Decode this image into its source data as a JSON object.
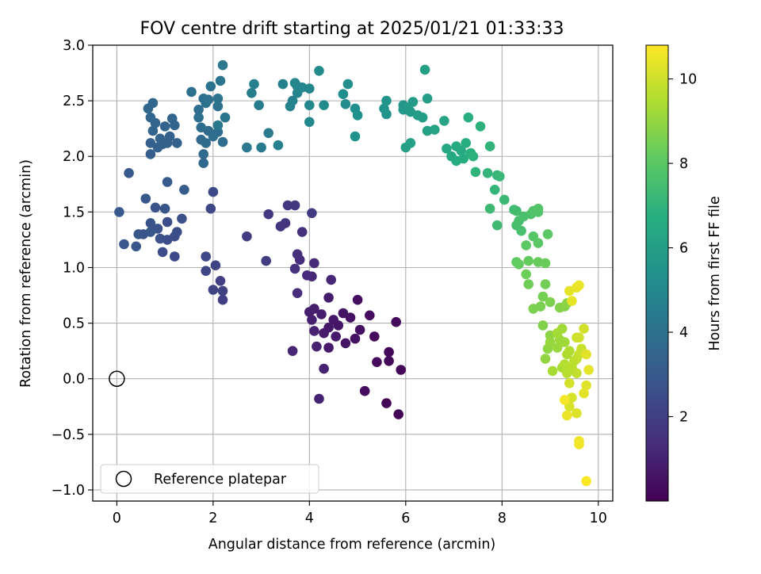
{
  "chart_data": {
    "type": "scatter",
    "title": "FOV centre drift starting at 2025/01/21 01:33:33",
    "xlabel": "Angular distance from reference (arcmin)",
    "ylabel": "Rotation from reference (arcmin)",
    "xlim": [
      -0.5,
      10.3
    ],
    "ylim": [
      -1.1,
      3.0
    ],
    "xticks": [
      0,
      2,
      4,
      6,
      8,
      10
    ],
    "xtick_labels": [
      "0",
      "2",
      "4",
      "6",
      "8",
      "10"
    ],
    "yticks": [
      -1.0,
      -0.5,
      0.0,
      0.5,
      1.0,
      1.5,
      2.0,
      2.5,
      3.0
    ],
    "ytick_labels": [
      "−1.0",
      "−0.5",
      "0.0",
      "0.5",
      "1.0",
      "1.5",
      "2.0",
      "2.5",
      "3.0"
    ],
    "grid": true,
    "colorbar": {
      "label": "Hours from first FF file",
      "colormap": "viridis",
      "range": [
        0.0,
        10.8
      ],
      "ticks": [
        2,
        4,
        6,
        8,
        10
      ],
      "tick_labels": [
        "2",
        "4",
        "6",
        "8",
        "10"
      ]
    },
    "reference": {
      "name": "Reference platepar",
      "x": 0.0,
      "y": 0.0
    },
    "legend": {
      "placement": "lower-left",
      "entries": [
        "Reference platepar"
      ]
    },
    "series_columns": [
      "x",
      "y",
      "hours"
    ],
    "series": [
      [
        5.85,
        -0.32,
        0.1
      ],
      [
        5.6,
        -0.22,
        0.1
      ],
      [
        5.9,
        0.08,
        0.15
      ],
      [
        5.65,
        0.16,
        0.2
      ],
      [
        5.65,
        0.24,
        0.2
      ],
      [
        5.8,
        0.51,
        0.25
      ],
      [
        5.15,
        -0.11,
        0.3
      ],
      [
        5.4,
        0.15,
        0.3
      ],
      [
        5.35,
        0.38,
        0.35
      ],
      [
        5.25,
        0.57,
        0.35
      ],
      [
        5.0,
        0.71,
        0.4
      ],
      [
        5.05,
        0.44,
        0.45
      ],
      [
        4.95,
        0.36,
        0.5
      ],
      [
        4.85,
        0.55,
        0.5
      ],
      [
        4.7,
        0.59,
        0.55
      ],
      [
        4.75,
        0.32,
        0.55
      ],
      [
        4.6,
        0.48,
        0.6
      ],
      [
        4.5,
        0.53,
        0.65
      ],
      [
        4.4,
        0.46,
        0.7
      ],
      [
        4.4,
        0.28,
        0.75
      ],
      [
        4.55,
        0.38,
        0.75
      ],
      [
        4.3,
        0.41,
        0.8
      ],
      [
        4.4,
        0.73,
        0.85
      ],
      [
        4.25,
        0.58,
        0.85
      ],
      [
        4.1,
        0.63,
        0.9
      ],
      [
        4.0,
        0.6,
        0.95
      ],
      [
        4.05,
        0.53,
        0.95
      ],
      [
        4.1,
        0.43,
        1.0
      ],
      [
        4.15,
        0.29,
        1.0
      ],
      [
        4.3,
        0.09,
        1.05
      ],
      [
        4.2,
        -0.18,
        1.05
      ],
      [
        3.65,
        0.25,
        1.1
      ],
      [
        4.45,
        0.89,
        1.15
      ],
      [
        4.05,
        0.92,
        1.2
      ],
      [
        4.1,
        1.04,
        1.25
      ],
      [
        3.95,
        0.93,
        1.3
      ],
      [
        3.75,
        0.77,
        1.35
      ],
      [
        3.8,
        1.07,
        1.4
      ],
      [
        3.75,
        1.12,
        1.45
      ],
      [
        3.7,
        0.99,
        1.5
      ],
      [
        3.85,
        1.32,
        1.55
      ],
      [
        3.5,
        1.4,
        1.6
      ],
      [
        3.4,
        1.37,
        1.65
      ],
      [
        3.55,
        1.56,
        1.7
      ],
      [
        3.7,
        1.56,
        1.75
      ],
      [
        3.15,
        1.48,
        1.8
      ],
      [
        4.05,
        1.49,
        1.85
      ],
      [
        3.1,
        1.06,
        1.9
      ],
      [
        2.7,
        1.28,
        1.95
      ],
      [
        2.2,
        0.71,
        2.0
      ],
      [
        2.15,
        0.88,
        2.05
      ],
      [
        2.2,
        0.79,
        2.1
      ],
      [
        2.0,
        0.8,
        2.15
      ],
      [
        2.05,
        1.02,
        2.2
      ],
      [
        1.85,
        0.97,
        2.25
      ],
      [
        1.85,
        1.1,
        2.3
      ],
      [
        1.95,
        1.53,
        2.35
      ],
      [
        2.0,
        1.68,
        2.4
      ],
      [
        1.2,
        1.1,
        2.45
      ],
      [
        0.95,
        1.14,
        2.5
      ],
      [
        1.05,
        1.25,
        2.5
      ],
      [
        1.2,
        1.28,
        2.55
      ],
      [
        1.25,
        1.32,
        2.55
      ],
      [
        1.05,
        1.41,
        2.6
      ],
      [
        1.35,
        1.44,
        2.65
      ],
      [
        0.85,
        1.35,
        2.7
      ],
      [
        0.9,
        1.26,
        2.7
      ],
      [
        0.7,
        1.4,
        2.75
      ],
      [
        0.55,
        1.3,
        2.75
      ],
      [
        0.8,
        1.54,
        2.8
      ],
      [
        1.0,
        1.53,
        2.85
      ],
      [
        0.4,
        1.19,
        2.85
      ],
      [
        0.45,
        1.3,
        2.9
      ],
      [
        0.15,
        1.21,
        2.9
      ],
      [
        0.6,
        1.62,
        2.95
      ],
      [
        0.7,
        1.32,
        2.95
      ],
      [
        0.05,
        1.5,
        3.0
      ],
      [
        0.25,
        1.85,
        3.05
      ],
      [
        1.05,
        1.77,
        3.1
      ],
      [
        1.4,
        1.7,
        3.15
      ],
      [
        0.7,
        2.02,
        3.2
      ],
      [
        0.7,
        2.12,
        3.25
      ],
      [
        0.85,
        2.08,
        3.25
      ],
      [
        0.95,
        2.11,
        3.3
      ],
      [
        1.05,
        2.12,
        3.3
      ],
      [
        1.25,
        2.12,
        3.35
      ],
      [
        1.1,
        2.18,
        3.35
      ],
      [
        0.9,
        2.16,
        3.4
      ],
      [
        0.75,
        2.23,
        3.45
      ],
      [
        1.0,
        2.27,
        3.45
      ],
      [
        1.2,
        2.28,
        3.5
      ],
      [
        1.15,
        2.34,
        3.5
      ],
      [
        0.8,
        2.3,
        3.55
      ],
      [
        0.7,
        2.35,
        3.55
      ],
      [
        0.65,
        2.43,
        3.6
      ],
      [
        0.75,
        2.48,
        3.6
      ],
      [
        1.8,
        1.94,
        3.65
      ],
      [
        1.8,
        2.02,
        3.7
      ],
      [
        1.75,
        2.15,
        3.7
      ],
      [
        1.85,
        2.12,
        3.75
      ],
      [
        1.9,
        2.23,
        3.75
      ],
      [
        2.0,
        2.18,
        3.8
      ],
      [
        2.2,
        2.13,
        3.8
      ],
      [
        2.1,
        2.22,
        3.85
      ],
      [
        1.75,
        2.26,
        3.85
      ],
      [
        1.7,
        2.35,
        3.9
      ],
      [
        1.7,
        2.42,
        3.9
      ],
      [
        1.85,
        2.48,
        3.95
      ],
      [
        1.8,
        2.52,
        3.95
      ],
      [
        1.9,
        2.51,
        4.0
      ],
      [
        1.55,
        2.58,
        4.0
      ],
      [
        1.95,
        2.63,
        4.05
      ],
      [
        2.1,
        2.45,
        4.05
      ],
      [
        2.1,
        2.52,
        4.1
      ],
      [
        2.25,
        2.35,
        4.15
      ],
      [
        2.15,
        2.68,
        4.2
      ],
      [
        2.2,
        2.82,
        4.25
      ],
      [
        2.1,
        2.28,
        4.3
      ],
      [
        2.7,
        2.08,
        4.35
      ],
      [
        3.0,
        2.08,
        4.4
      ],
      [
        3.15,
        2.21,
        4.45
      ],
      [
        2.95,
        2.46,
        4.5
      ],
      [
        2.8,
        2.57,
        4.55
      ],
      [
        2.85,
        2.65,
        4.6
      ],
      [
        3.35,
        2.1,
        4.65
      ],
      [
        3.45,
        2.65,
        4.7
      ],
      [
        3.6,
        2.45,
        4.75
      ],
      [
        3.65,
        2.5,
        4.8
      ],
      [
        3.75,
        2.57,
        4.85
      ],
      [
        3.75,
        2.63,
        4.85
      ],
      [
        3.85,
        2.62,
        4.9
      ],
      [
        3.7,
        2.66,
        4.9
      ],
      [
        4.0,
        2.61,
        4.95
      ],
      [
        4.0,
        2.46,
        5.0
      ],
      [
        4.0,
        2.31,
        5.05
      ],
      [
        4.3,
        2.46,
        5.1
      ],
      [
        4.2,
        2.77,
        5.15
      ],
      [
        4.75,
        2.47,
        5.2
      ],
      [
        4.7,
        2.56,
        5.25
      ],
      [
        4.8,
        2.65,
        5.3
      ],
      [
        4.95,
        2.43,
        5.35
      ],
      [
        5.0,
        2.37,
        5.4
      ],
      [
        4.95,
        2.18,
        5.45
      ],
      [
        5.55,
        2.43,
        5.5
      ],
      [
        5.6,
        2.38,
        5.55
      ],
      [
        5.6,
        2.5,
        5.6
      ],
      [
        5.95,
        2.46,
        5.65
      ],
      [
        5.95,
        2.42,
        5.7
      ],
      [
        6.05,
        2.44,
        5.75
      ],
      [
        6.1,
        2.4,
        5.8
      ],
      [
        6.15,
        2.49,
        5.85
      ],
      [
        6.25,
        2.37,
        5.9
      ],
      [
        6.35,
        2.35,
        5.95
      ],
      [
        6.45,
        2.52,
        6.0
      ],
      [
        6.4,
        2.78,
        6.05
      ],
      [
        6.0,
        2.08,
        6.1
      ],
      [
        6.1,
        2.12,
        6.15
      ],
      [
        6.45,
        2.23,
        6.2
      ],
      [
        6.6,
        2.24,
        6.25
      ],
      [
        6.8,
        2.32,
        6.3
      ],
      [
        6.85,
        2.07,
        6.4
      ],
      [
        6.95,
        2.0,
        6.45
      ],
      [
        7.05,
        2.09,
        6.5
      ],
      [
        7.15,
        2.05,
        6.55
      ],
      [
        7.05,
        1.96,
        6.6
      ],
      [
        7.2,
        1.98,
        6.65
      ],
      [
        7.25,
        2.12,
        6.7
      ],
      [
        7.3,
        2.35,
        6.75
      ],
      [
        7.35,
        2.03,
        6.8
      ],
      [
        7.4,
        2.0,
        6.85
      ],
      [
        7.55,
        2.27,
        6.9
      ],
      [
        7.45,
        1.86,
        6.95
      ],
      [
        7.75,
        2.09,
        7.0
      ],
      [
        7.7,
        1.85,
        7.05
      ],
      [
        7.85,
        1.7,
        7.1
      ],
      [
        7.9,
        1.83,
        7.15
      ],
      [
        7.95,
        1.82,
        7.2
      ],
      [
        8.05,
        1.61,
        7.25
      ],
      [
        7.75,
        1.53,
        7.3
      ],
      [
        7.9,
        1.38,
        7.35
      ],
      [
        8.25,
        1.52,
        7.4
      ],
      [
        8.3,
        1.51,
        7.45
      ],
      [
        8.35,
        1.42,
        7.5
      ],
      [
        8.3,
        1.38,
        7.55
      ],
      [
        8.4,
        1.33,
        7.6
      ],
      [
        8.45,
        1.46,
        7.65
      ],
      [
        8.6,
        1.48,
        7.7
      ],
      [
        8.65,
        1.51,
        7.75
      ],
      [
        8.75,
        1.5,
        7.8
      ],
      [
        8.75,
        1.53,
        7.85
      ],
      [
        8.65,
        1.28,
        7.9
      ],
      [
        8.75,
        1.22,
        7.95
      ],
      [
        8.95,
        1.3,
        8.0
      ],
      [
        8.5,
        1.2,
        8.05
      ],
      [
        8.3,
        1.05,
        8.1
      ],
      [
        8.35,
        1.03,
        8.15
      ],
      [
        8.55,
        1.06,
        8.2
      ],
      [
        8.75,
        1.05,
        8.25
      ],
      [
        8.9,
        1.04,
        8.3
      ],
      [
        8.5,
        0.94,
        8.35
      ],
      [
        8.55,
        0.85,
        8.4
      ],
      [
        8.9,
        0.85,
        8.45
      ],
      [
        8.85,
        0.74,
        8.5
      ],
      [
        8.8,
        0.65,
        8.55
      ],
      [
        8.65,
        0.63,
        8.6
      ],
      [
        9.0,
        0.69,
        8.65
      ],
      [
        8.85,
        0.48,
        8.7
      ],
      [
        9.2,
        0.64,
        8.75
      ],
      [
        9.3,
        0.65,
        8.8
      ],
      [
        9.35,
        0.68,
        8.85
      ],
      [
        9.0,
        0.39,
        8.9
      ],
      [
        8.95,
        0.27,
        8.95
      ],
      [
        8.9,
        0.18,
        9.0
      ],
      [
        9.0,
        0.33,
        9.05
      ],
      [
        9.15,
        0.28,
        9.1
      ],
      [
        9.2,
        0.35,
        9.15
      ],
      [
        9.3,
        0.33,
        9.2
      ],
      [
        9.25,
        0.45,
        9.25
      ],
      [
        9.15,
        0.41,
        9.3
      ],
      [
        9.05,
        0.07,
        9.35
      ],
      [
        9.25,
        0.1,
        9.4
      ],
      [
        9.35,
        0.22,
        9.45
      ],
      [
        9.4,
        0.25,
        9.5
      ],
      [
        9.3,
        0.13,
        9.55
      ],
      [
        9.35,
        0.05,
        9.6
      ],
      [
        9.45,
        0.1,
        9.65
      ],
      [
        9.5,
        0.16,
        9.7
      ],
      [
        9.55,
        0.18,
        9.75
      ],
      [
        9.55,
        0.05,
        9.8
      ],
      [
        9.6,
        0.22,
        9.85
      ],
      [
        9.65,
        0.27,
        9.9
      ],
      [
        9.55,
        0.37,
        9.95
      ],
      [
        9.6,
        0.37,
        10.0
      ],
      [
        9.7,
        0.45,
        10.05
      ],
      [
        9.4,
        -0.04,
        10.1
      ],
      [
        9.45,
        -0.17,
        10.15
      ],
      [
        9.4,
        -0.25,
        10.2
      ],
      [
        9.55,
        -0.31,
        10.25
      ],
      [
        9.75,
        -0.06,
        10.3
      ],
      [
        9.7,
        -0.13,
        10.35
      ],
      [
        9.75,
        0.22,
        10.35
      ],
      [
        9.8,
        0.08,
        10.4
      ],
      [
        9.4,
        0.79,
        10.4
      ],
      [
        9.45,
        0.7,
        10.45
      ],
      [
        9.55,
        0.82,
        10.45
      ],
      [
        9.6,
        0.84,
        10.5
      ],
      [
        9.35,
        -0.33,
        10.5
      ],
      [
        9.6,
        -0.56,
        10.55
      ],
      [
        9.6,
        -0.59,
        10.6
      ],
      [
        9.3,
        -0.19,
        10.65
      ],
      [
        9.75,
        -0.92,
        10.75
      ]
    ]
  }
}
